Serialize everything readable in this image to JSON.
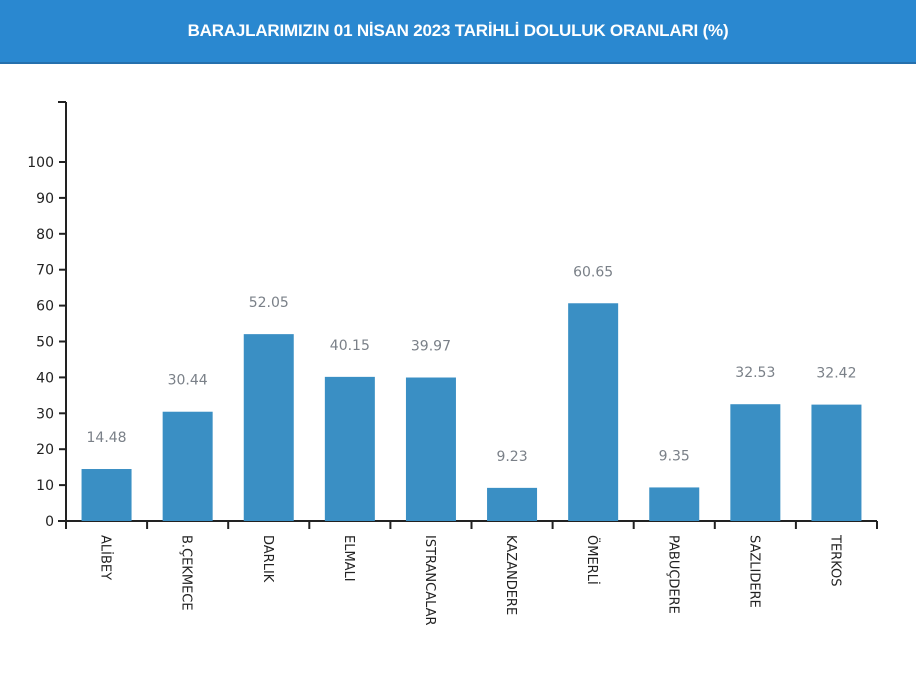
{
  "header": {
    "title": "BARAJLARIMIZIN 01 NİSAN 2023 TARİHLİ DOLULUK ORANLARI (%)"
  },
  "colors": {
    "header_bg": "#2a88d0",
    "bar": "#3a8fc4",
    "value_label": "#7a8088",
    "axis": "#222222"
  },
  "chart_data": {
    "type": "bar",
    "title": "BARAJLARIMIZIN 01 NİSAN 2023 TARİHLİ DOLULUK ORANLARI (%)",
    "xlabel": "",
    "ylabel": "",
    "categories": [
      "ALİBEY",
      "B.ÇEKMECE",
      "DARLIK",
      "ELMALI",
      "ISTRANCALAR",
      "KAZANDERE",
      "ÖMERLİ",
      "PABUÇDERE",
      "SAZLIDERE",
      "TERKOS"
    ],
    "values": [
      14.48,
      30.44,
      52.05,
      40.15,
      39.97,
      9.23,
      60.65,
      9.35,
      32.53,
      32.42
    ],
    "value_labels": [
      "14.48",
      "30.44",
      "52.05",
      "40.15",
      "39.97",
      "9.23",
      "60.65",
      "9.35",
      "32.53",
      "32.42"
    ],
    "yticks": [
      0,
      10,
      20,
      30,
      40,
      50,
      60,
      70,
      80,
      90,
      100
    ],
    "ylim": [
      0,
      116
    ],
    "grid": false,
    "legend": null
  }
}
